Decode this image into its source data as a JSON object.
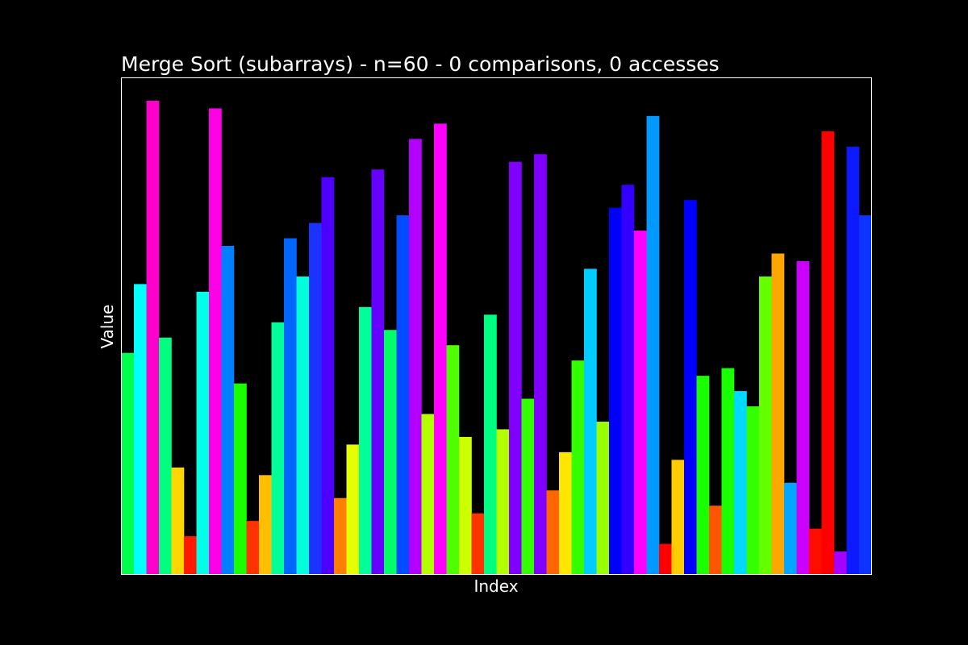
{
  "chart_data": {
    "type": "bar",
    "title": "Merge Sort (subarrays) - n=60 - 0 comparisons, 0 accesses",
    "xlabel": "Index",
    "ylabel": "Value",
    "xticks": [],
    "yticks": [],
    "grid": false,
    "background_color": "#000000",
    "axes_color": "#ffffff",
    "text_color": "#ffffff",
    "ylim": [
      0,
      65
    ],
    "categories": [
      0,
      1,
      2,
      3,
      4,
      5,
      6,
      7,
      8,
      9,
      10,
      11,
      12,
      13,
      14,
      15,
      16,
      17,
      18,
      19,
      20,
      21,
      22,
      23,
      24,
      25,
      26,
      27,
      28,
      29,
      30,
      31,
      32,
      33,
      34,
      35,
      36,
      37,
      38,
      39,
      40,
      41,
      42,
      43,
      44,
      45,
      46,
      47,
      48,
      49,
      50,
      51,
      52,
      53,
      54,
      55,
      56,
      57,
      58,
      59
    ],
    "values": [
      29,
      38,
      62,
      31,
      14,
      5,
      37,
      61,
      43,
      25,
      7,
      13,
      33,
      44,
      39,
      46,
      52,
      10,
      17,
      35,
      53,
      32,
      47,
      57,
      21,
      59,
      30,
      18,
      8,
      34,
      19,
      54,
      23,
      55,
      11,
      16,
      28,
      40,
      20,
      48,
      51,
      45,
      60,
      4,
      15,
      49,
      26,
      9,
      27,
      24,
      22,
      39,
      42,
      12,
      41,
      6,
      58,
      3,
      56,
      47
    ],
    "colors": [
      "#00ff4d",
      "#00ffff",
      "#ff00cc",
      "#00ff80",
      "#ffd700",
      "#ff1a00",
      "#00ffe6",
      "#ff00e6",
      "#0080ff",
      "#1aff00",
      "#ff3300",
      "#ffbf00",
      "#00ff99",
      "#0066ff",
      "#00ffd9",
      "#1a33ff",
      "#4d00ff",
      "#ff8000",
      "#e6ff00",
      "#00ff99",
      "#6600ff",
      "#00ff66",
      "#004dff",
      "#b300ff",
      "#b3ff00",
      "#ff00ff",
      "#4dff00",
      "#ccff00",
      "#ff3300",
      "#00ff80",
      "#b3ff00",
      "#8000ff",
      "#33ff00",
      "#8000ff",
      "#ff6600",
      "#ffe600",
      "#33ff00",
      "#00ccff",
      "#99ff00",
      "#0000ff",
      "#3300ff",
      "#ff00ff",
      "#0099ff",
      "#ff0000",
      "#ffcc00",
      "#0000ff",
      "#1aff00",
      "#ff5500",
      "#1aff00",
      "#00d9ff",
      "#33ff00",
      "#66ff00",
      "#ffa600",
      "#00a6ff",
      "#cc00ff",
      "#ff0d00",
      "#ff0000",
      "#a600ff",
      "#0d1aff",
      "#0d33ff"
    ]
  }
}
